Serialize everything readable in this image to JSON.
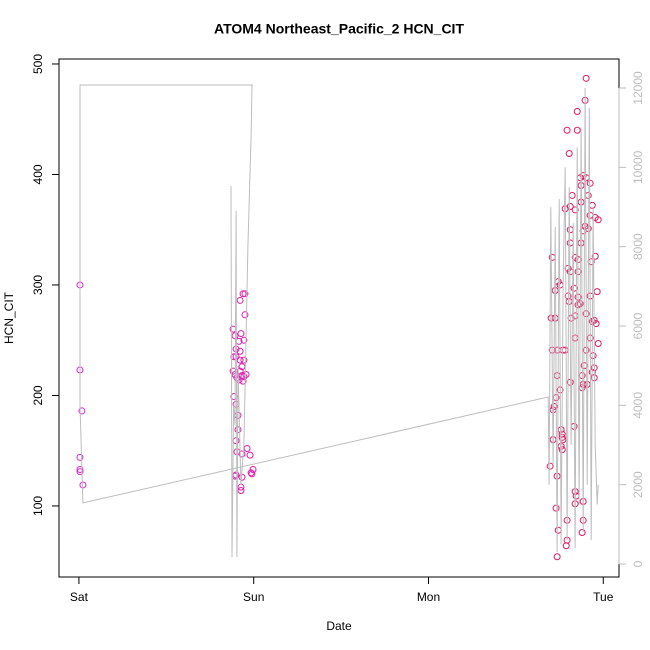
{
  "chart_data": {
    "type": "scatter",
    "title": "ATOM4 Northeast_Pacific_2 HCN_CIT",
    "xlabel": "Date",
    "ylabel": "HCN_CIT",
    "xlim": [
      -0.114,
      3.09
    ],
    "xticks": [
      {
        "value": 0,
        "label": "Sat"
      },
      {
        "value": 1,
        "label": "Sun"
      },
      {
        "value": 2,
        "label": "Mon"
      },
      {
        "value": 3,
        "label": "Tue"
      }
    ],
    "ylim": [
      35.7,
      504.5
    ],
    "yticks": [
      100,
      200,
      300,
      400,
      500
    ],
    "y2lim": [
      -328,
      12731
    ],
    "y2ticks": [
      0,
      2000,
      4000,
      6000,
      8000,
      10000,
      12000
    ],
    "y2_color": "#bdbdbd",
    "series": [
      {
        "type": "scatter",
        "color": [
          "#dd22dd",
          "#e8175a"
        ],
        "x": [
          0.006,
          0.006,
          0.017,
          0.006,
          0.006,
          0.006,
          0.023,
          0.882,
          0.893,
          0.916,
          0.899,
          0.922,
          0.887,
          0.899,
          0.922,
          0.944,
          0.933,
          0.882,
          0.922,
          0.893,
          0.956,
          0.933,
          0.944,
          0.904,
          0.916,
          0.939,
          0.887,
          0.899,
          0.91,
          0.91,
          0.899,
          0.904,
          0.933,
          0.962,
          0.979,
          0.996,
          0.985,
          0.99,
          0.899,
          0.893,
          0.933,
          0.927,
          0.927,
          0.939,
          0.95,
          0.922,
          0.95,
          0.927,
          0.944,
          2.902,
          2.896,
          2.851,
          2.851,
          2.793,
          2.805,
          2.885,
          2.902,
          2.868,
          2.925,
          2.873,
          2.914,
          2.822,
          2.873,
          2.811,
          2.839,
          2.937,
          2.782,
          2.925,
          2.954,
          2.971,
          2.896,
          2.885,
          2.811,
          2.914,
          2.811,
          2.873,
          2.839,
          2.708,
          2.856,
          2.931,
          2.954,
          2.799,
          2.811,
          2.856,
          2.742,
          2.753,
          2.725,
          2.833,
          2.965,
          2.925,
          2.799,
          2.856,
          2.805,
          2.856,
          2.868,
          2.902,
          2.839,
          2.816,
          2.702,
          2.725,
          2.948,
          2.937,
          2.959,
          2.839,
          2.925,
          2.971,
          2.902,
          2.736,
          2.77,
          2.708,
          2.782,
          2.942,
          2.891,
          2.948,
          2.879,
          2.736,
          2.937,
          2.948,
          2.811,
          2.885,
          2.879,
          2.753,
          2.908,
          2.73,
          2.719,
          2.713,
          2.759,
          2.765,
          2.765,
          2.77,
          2.713,
          2.759,
          2.765,
          2.833,
          2.696,
          2.736,
          2.73,
          2.839,
          2.845,
          2.839,
          2.885,
          2.793,
          2.885,
          2.742,
          2.793,
          2.788,
          2.879,
          2.736
        ],
        "values": [
          300,
          223,
          186,
          144,
          133,
          131,
          119,
          260,
          254,
          249,
          242,
          240,
          235,
          235,
          232,
          232,
          226,
          222,
          222,
          219,
          219,
          218,
          217,
          216,
          214,
          213,
          199,
          192,
          182,
          169,
          159,
          149,
          147,
          152,
          146,
          133,
          130,
          129,
          128,
          127,
          126,
          117,
          114,
          292,
          292,
          286,
          273,
          256,
          250,
          487,
          467,
          457,
          440,
          440,
          419,
          399,
          397,
          397,
          392,
          390,
          381,
          381,
          375,
          371,
          368,
          372,
          369,
          363,
          361,
          359,
          353,
          349,
          350,
          351,
          338,
          338,
          325,
          325,
          323,
          321,
          326,
          315,
          312,
          312,
          303,
          300,
          295,
          297,
          294,
          290,
          290,
          289,
          285,
          282,
          283,
          274,
          272,
          270,
          270,
          270,
          268,
          267,
          265,
          252,
          252,
          247,
          241,
          241,
          241,
          241,
          241,
          236,
          227,
          225,
          218,
          218,
          221,
          216,
          212,
          210,
          207,
          205,
          210,
          198,
          190,
          187,
          169,
          165,
          162,
          160,
          160,
          154,
          151,
          172,
          136,
          127,
          98,
          113,
          109,
          102,
          104,
          87,
          87,
          78,
          69,
          64,
          76,
          54
        ]
      },
      {
        "type": "line",
        "axis": "y2",
        "color": "#bdbdbd",
        "x": [
          0.87,
          0.876,
          0.885,
          0.893,
          0.899,
          0.904,
          0.91,
          0.927,
          0.944,
          0.967,
          0.985,
          0.99,
          0.996,
          0.006,
          0.006,
          0.023,
          2.685,
          2.69,
          2.7,
          2.713,
          2.725,
          2.736,
          2.748,
          2.759,
          2.77,
          2.782,
          2.793,
          2.805,
          2.816,
          2.828,
          2.839,
          2.851,
          2.862,
          2.873,
          2.885,
          2.896,
          2.908,
          2.92,
          2.931,
          2.942,
          2.954,
          2.965,
          2.971
        ],
        "values": [
          9530,
          176,
          4000,
          3500,
          8900,
          176,
          5000,
          2000,
          3000,
          8000,
          10800,
          12075,
          12075,
          12075,
          4000,
          1540,
          4210,
          2000,
          9000,
          2500,
          8500,
          300,
          9200,
          500,
          7000,
          10000,
          600,
          9500,
          3000,
          8600,
          400,
          10500,
          1500,
          11000,
          800,
          12000,
          2000,
          11500,
          600,
          9000,
          3000,
          1500,
          2000
        ]
      }
    ]
  }
}
